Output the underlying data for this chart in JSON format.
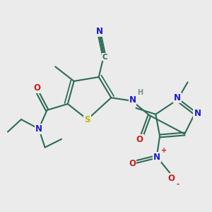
{
  "bg_color": "#ebebeb",
  "bond_color": "#2e6b55",
  "bond_width": 1.5,
  "atom_colors": {
    "C": "#2e6b55",
    "N": "#1a1acc",
    "O": "#cc1a1a",
    "S": "#b8b800",
    "H": "#7a8a8a",
    "plus": "#cc1a1a",
    "minus": "#cc1a1a"
  },
  "figsize": [
    3.0,
    3.0
  ],
  "dpi": 100
}
